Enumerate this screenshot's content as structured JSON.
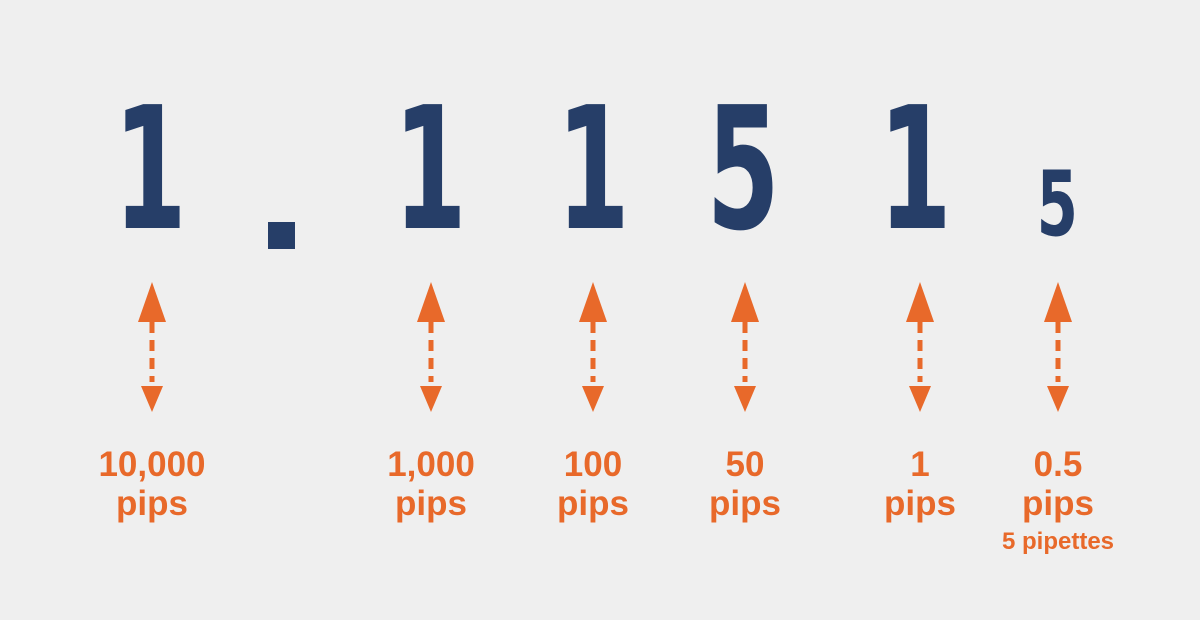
{
  "price": {
    "digits": [
      "1",
      "1",
      "1",
      "5",
      "1",
      "5"
    ],
    "separator": "."
  },
  "labels": [
    {
      "value": "10,000",
      "unit": "pips"
    },
    {
      "value": "1,000",
      "unit": "pips"
    },
    {
      "value": "100",
      "unit": "pips"
    },
    {
      "value": "50",
      "unit": "pips"
    },
    {
      "value": "1",
      "unit": "pips"
    },
    {
      "value": "0.5",
      "unit": "pips",
      "sub": "5 pipettes"
    }
  ],
  "colors": {
    "background": "#efefef",
    "digit": "#263e68",
    "accent": "#e8692a"
  }
}
